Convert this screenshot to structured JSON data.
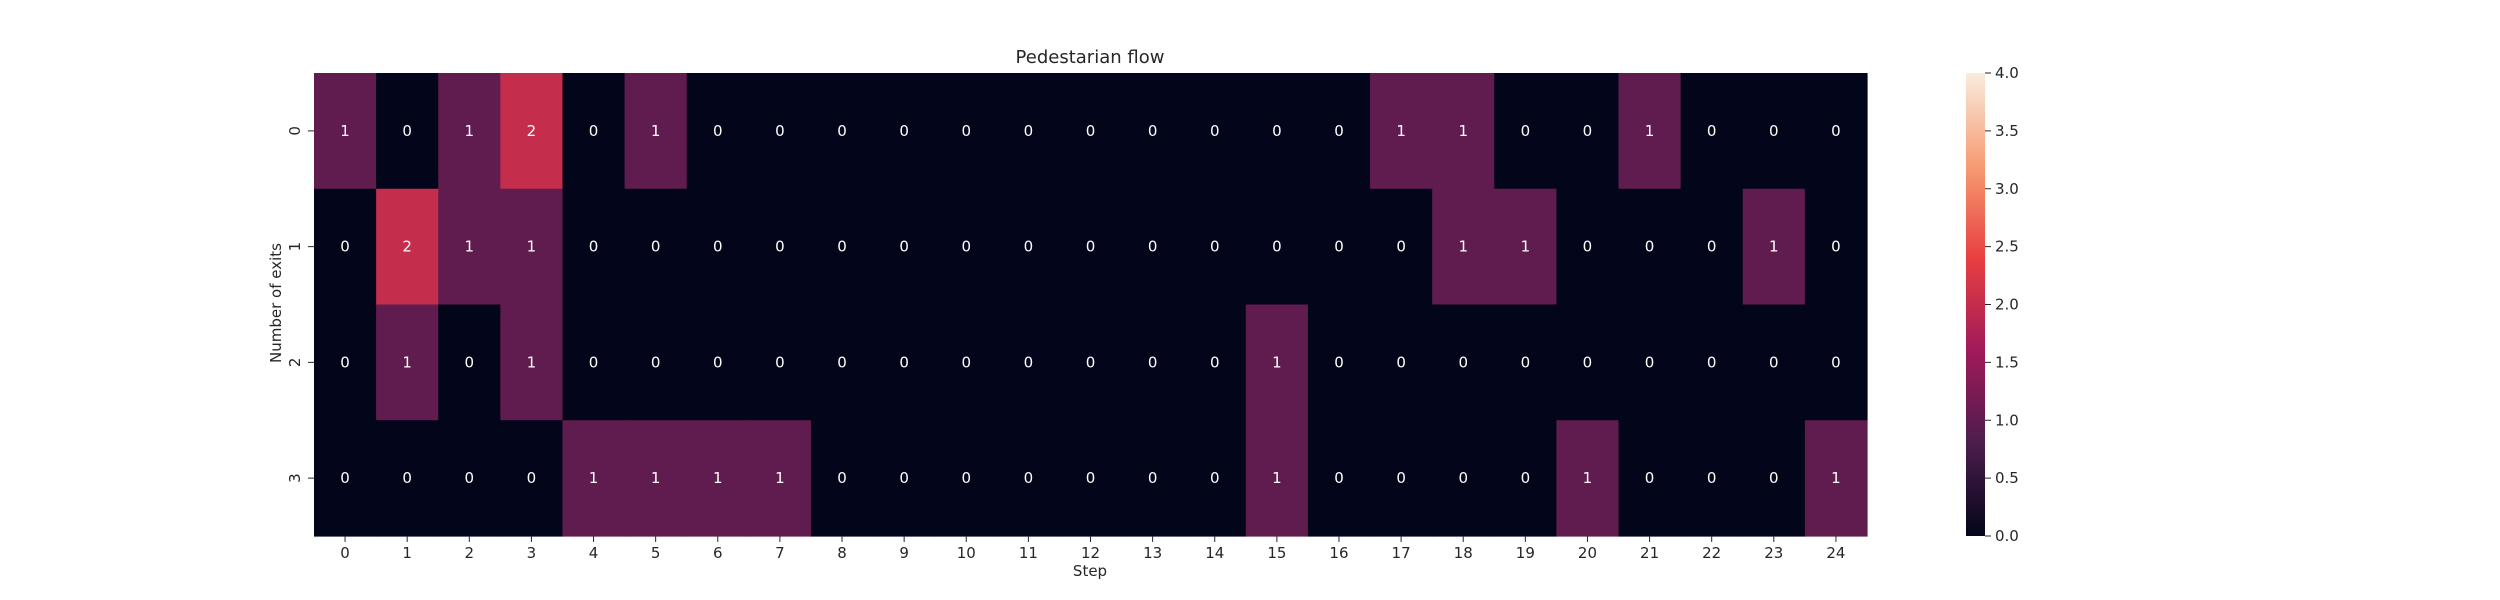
{
  "chart_data": {
    "type": "heatmap",
    "title": "Pedestarian flow",
    "xlabel": "Step",
    "ylabel": "Number of exits",
    "x_categories": [
      "0",
      "1",
      "2",
      "3",
      "4",
      "5",
      "6",
      "7",
      "8",
      "9",
      "10",
      "11",
      "12",
      "13",
      "14",
      "15",
      "16",
      "17",
      "18",
      "19",
      "20",
      "21",
      "22",
      "23",
      "24"
    ],
    "y_categories": [
      "0",
      "1",
      "2",
      "3"
    ],
    "values": [
      [
        1,
        0,
        1,
        2,
        0,
        1,
        0,
        0,
        0,
        0,
        0,
        0,
        0,
        0,
        0,
        0,
        0,
        1,
        1,
        0,
        0,
        1,
        0,
        0,
        0
      ],
      [
        0,
        2,
        1,
        1,
        0,
        0,
        0,
        0,
        0,
        0,
        0,
        0,
        0,
        0,
        0,
        0,
        0,
        0,
        1,
        1,
        0,
        0,
        0,
        1,
        0
      ],
      [
        0,
        1,
        0,
        1,
        0,
        0,
        0,
        0,
        0,
        0,
        0,
        0,
        0,
        0,
        0,
        1,
        0,
        0,
        0,
        0,
        0,
        0,
        0,
        0,
        0
      ],
      [
        0,
        0,
        0,
        0,
        1,
        1,
        1,
        1,
        0,
        0,
        0,
        0,
        0,
        0,
        0,
        1,
        0,
        0,
        0,
        0,
        1,
        0,
        0,
        0,
        1
      ]
    ],
    "colorbar": {
      "range": [
        0,
        4
      ],
      "ticks": [
        "0.0",
        "0.5",
        "1.0",
        "1.5",
        "2.0",
        "2.5",
        "3.0",
        "3.5",
        "4.0"
      ],
      "colormap": "rocket",
      "color_stops": [
        "#03051a",
        "#4c1d4b",
        "#a11a5b",
        "#e83f3f",
        "#f69c73",
        "#faebdd"
      ]
    },
    "annotations": true,
    "grid": false
  }
}
